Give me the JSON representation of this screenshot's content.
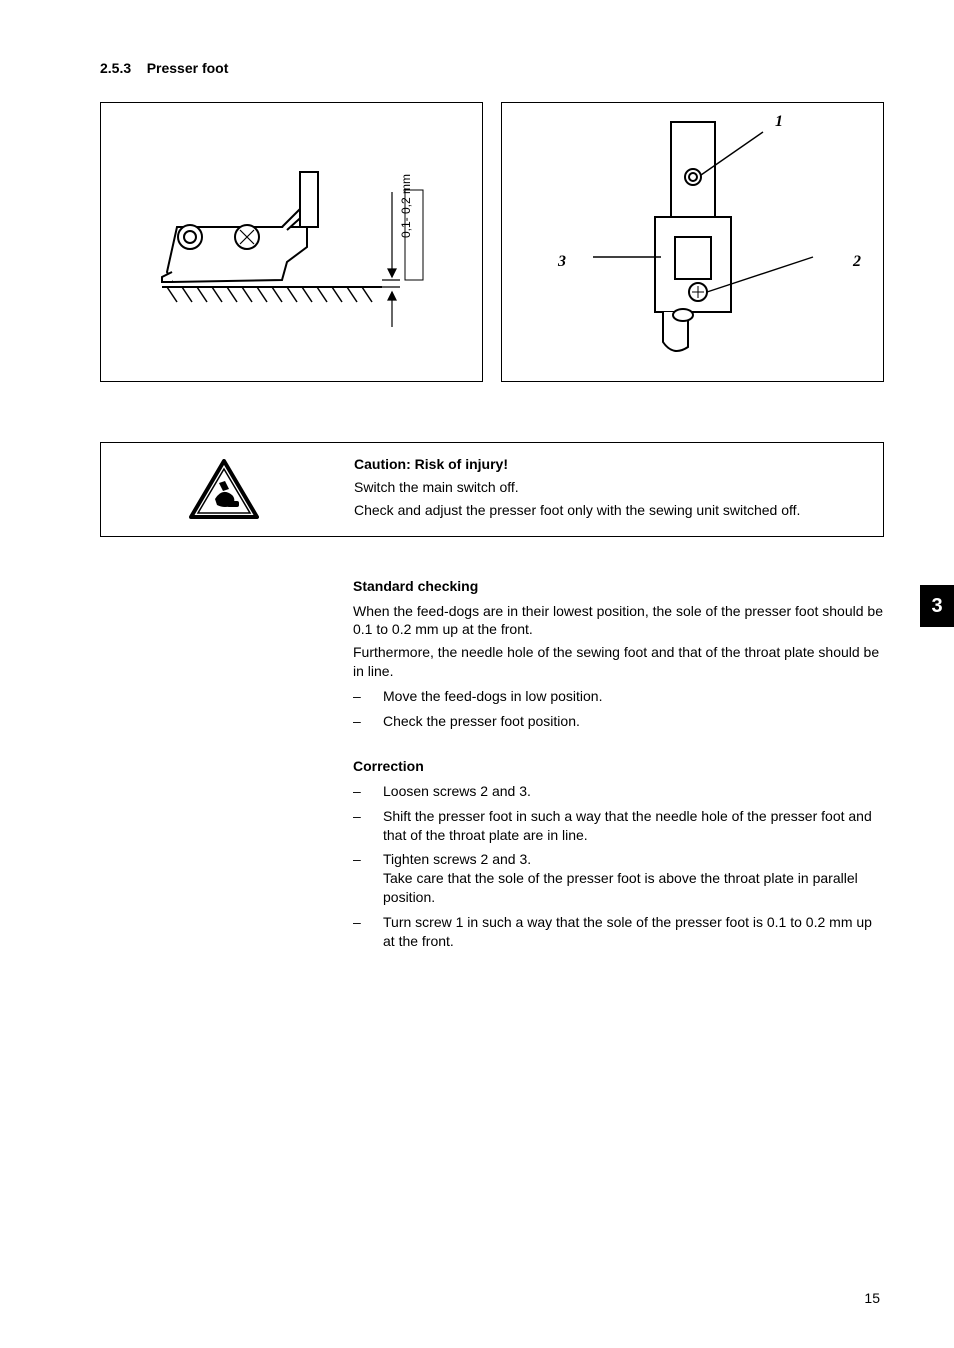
{
  "section": {
    "number": "2.5.3",
    "title": "Presser foot"
  },
  "figure_left": {
    "dimension_label": "0,1- 0,2 mm"
  },
  "figure_right": {
    "callouts": {
      "c1": "1",
      "c2": "2",
      "c3": "3"
    }
  },
  "caution": {
    "title": "Caution: Risk of injury!",
    "line1": "Switch the main switch off.",
    "line2": "Check and adjust the presser foot only with the sewing unit switched off."
  },
  "standard_checking": {
    "heading": "Standard checking",
    "p1": "When the feed-dogs are in their lowest position, the sole of the presser foot should be 0.1 to 0.2 mm up at the front.",
    "p2": "Furthermore, the needle hole of the sewing foot and that of the throat plate should be in line.",
    "items": [
      "Move the feed-dogs in low position.",
      "Check the presser foot position."
    ]
  },
  "correction": {
    "heading": "Correction",
    "items": [
      "Loosen screws 2 and 3.",
      "Shift the presser foot in such a way that the needle hole of the presser foot and that of the throat plate are in line.",
      "Tighten screws 2 and 3.\nTake care that the sole of the presser foot is above the throat plate in parallel position.",
      "Turn screw 1 in such a way that the sole of the presser foot is 0.1 to 0.2 mm up at the front."
    ]
  },
  "side_tab": "3",
  "page_number": "15"
}
